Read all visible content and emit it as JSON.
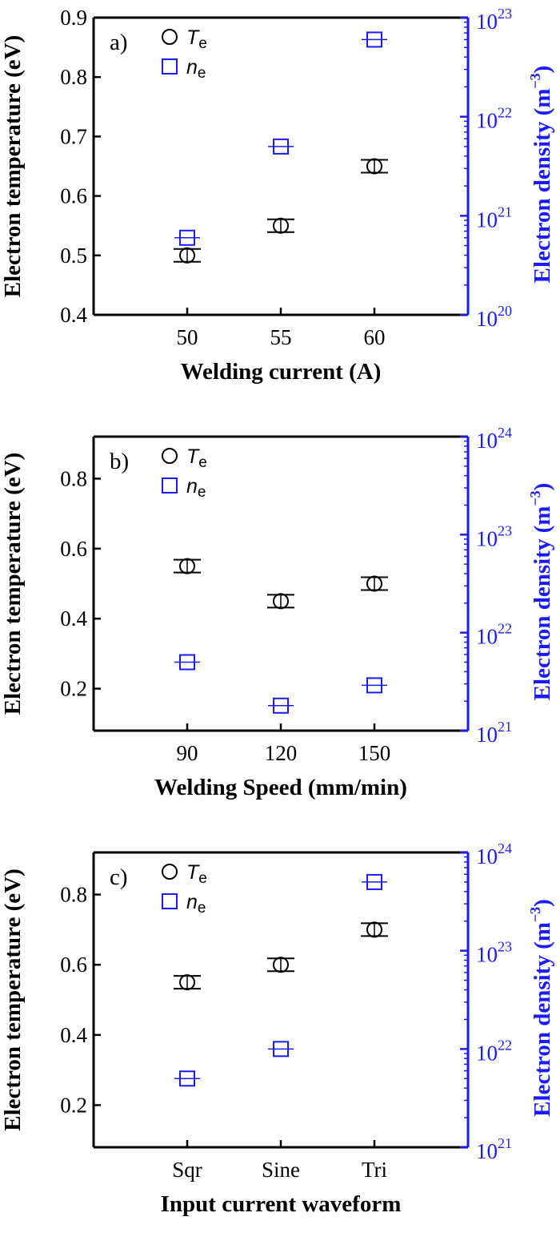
{
  "colors": {
    "te": "#000000",
    "ne": "#1a1aff",
    "frame": "#000000",
    "right_axis": "#1a1aff"
  },
  "legend": {
    "te_symbol": "T",
    "te_sub": "e",
    "ne_symbol": "n",
    "ne_sub": "e"
  },
  "chart_data": [
    {
      "type": "scatter",
      "panel_label": "a)",
      "xlabel": "Welding current (A)",
      "ylabel": "Electron temperature (eV)",
      "y2label": "Electron density (m",
      "y2label_unit_exp": "−3",
      "y2label_close": ")",
      "categories": [
        "50",
        "55",
        "60"
      ],
      "x_range": [
        0,
        4
      ],
      "ylim": [
        0.4,
        0.9
      ],
      "y_ticks": [
        "0.4",
        "0.5",
        "0.6",
        "0.7",
        "0.8",
        "0.9"
      ],
      "y2_scale": "log",
      "y2_ticks_exp": [
        20,
        21,
        22,
        23
      ],
      "y2_tick_base": "10",
      "series": [
        {
          "name": "Te",
          "axis": "left",
          "marker": "circle",
          "values": [
            0.5,
            0.55,
            0.65
          ],
          "errors": [
            0.008,
            0.008,
            0.008
          ]
        },
        {
          "name": "ne",
          "axis": "right",
          "marker": "square",
          "values": [
            6e+20,
            5e+21,
            6e+22
          ]
        }
      ]
    },
    {
      "type": "scatter",
      "panel_label": "b)",
      "xlabel": "Welding Speed (mm/min)",
      "ylabel": "Electron temperature (eV)",
      "y2label": "Electron density (m",
      "y2label_unit_exp": "−3",
      "y2label_close": ")",
      "categories": [
        "90",
        "120",
        "150"
      ],
      "x_range": [
        0,
        4
      ],
      "ylim": [
        0.08,
        0.92
      ],
      "y_ticks": [
        "0.2",
        "0.4",
        "0.6",
        "0.8"
      ],
      "y2_scale": "log",
      "y2_ticks_exp": [
        21,
        22,
        23,
        24
      ],
      "y2_tick_base": "10",
      "series": [
        {
          "name": "Te",
          "axis": "left",
          "marker": "circle",
          "values": [
            0.55,
            0.45,
            0.5
          ],
          "errors": [
            0.006,
            0.006,
            0.006
          ]
        },
        {
          "name": "ne",
          "axis": "right",
          "marker": "square",
          "values": [
            5e+21,
            1.8e+21,
            2.9e+21
          ]
        }
      ]
    },
    {
      "type": "scatter",
      "panel_label": "c)",
      "xlabel": "Input current waveform",
      "ylabel": "Electron temperature (eV)",
      "y2label": "Electron density (m",
      "y2label_unit_exp": "−3",
      "y2label_close": ")",
      "categories": [
        "Sqr",
        "Sine",
        "Tri"
      ],
      "x_range": [
        0,
        4
      ],
      "ylim": [
        0.08,
        0.92
      ],
      "y_ticks": [
        "0.2",
        "0.4",
        "0.6",
        "0.8"
      ],
      "y2_scale": "log",
      "y2_ticks_exp": [
        21,
        22,
        23,
        24
      ],
      "y2_tick_base": "10",
      "series": [
        {
          "name": "Te",
          "axis": "left",
          "marker": "circle",
          "values": [
            0.55,
            0.6,
            0.7
          ],
          "errors": [
            0.006,
            0.006,
            0.006
          ]
        },
        {
          "name": "ne",
          "axis": "right",
          "marker": "square",
          "values": [
            5e+21,
            1e+22,
            5e+23
          ]
        }
      ]
    }
  ]
}
